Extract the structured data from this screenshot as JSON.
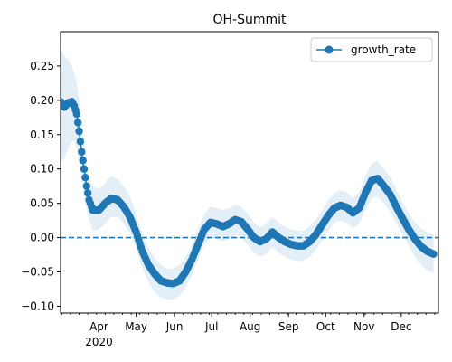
{
  "chart_data": {
    "type": "line",
    "title": "OH-Summit",
    "xlabel": "",
    "ylabel": "",
    "x_axis": {
      "kind": "date",
      "range": [
        "2020-03-01",
        "2020-12-31"
      ],
      "ticks": [
        {
          "date": "2020-04-01",
          "label": "Apr",
          "sublabel": "2020"
        },
        {
          "date": "2020-05-01",
          "label": "May"
        },
        {
          "date": "2020-06-01",
          "label": "Jun"
        },
        {
          "date": "2020-07-01",
          "label": "Jul"
        },
        {
          "date": "2020-08-01",
          "label": "Aug"
        },
        {
          "date": "2020-09-01",
          "label": "Sep"
        },
        {
          "date": "2020-10-01",
          "label": "Oct"
        },
        {
          "date": "2020-11-01",
          "label": "Nov"
        },
        {
          "date": "2020-12-01",
          "label": "Dec"
        }
      ]
    },
    "y_axis": {
      "range": [
        -0.11,
        0.3
      ],
      "ticks": [
        -0.1,
        -0.05,
        0.0,
        0.05,
        0.1,
        0.15,
        0.2,
        0.25
      ],
      "tick_labels": [
        "−0.10",
        "−0.05",
        "0.00",
        "0.05",
        "0.10",
        "0.15",
        "0.20",
        "0.25"
      ]
    },
    "legend": {
      "placement": "top-right",
      "entries": [
        "growth_rate"
      ]
    },
    "grid": false,
    "reference_line": {
      "y": 0.0,
      "style": "dashed",
      "color": "#1f77b4"
    },
    "colors": {
      "series": "#1f77b4",
      "band": "#1f77b4"
    },
    "series": [
      {
        "name": "growth_rate",
        "marker": "circle",
        "points": [
          {
            "x": "2020-03-01",
            "y": 0.198,
            "lo": 0.11,
            "hi": 0.275
          },
          {
            "x": "2020-03-04",
            "y": 0.19,
            "lo": 0.115,
            "hi": 0.265
          },
          {
            "x": "2020-03-07",
            "y": 0.196,
            "lo": 0.13,
            "hi": 0.26
          },
          {
            "x": "2020-03-10",
            "y": 0.198,
            "lo": 0.14,
            "hi": 0.25
          },
          {
            "x": "2020-03-12",
            "y": 0.192,
            "lo": 0.14,
            "hi": 0.24
          },
          {
            "x": "2020-03-14",
            "y": 0.18,
            "lo": 0.13,
            "hi": 0.225
          },
          {
            "x": "2020-03-16",
            "y": 0.155,
            "lo": 0.11,
            "hi": 0.2
          },
          {
            "x": "2020-03-18",
            "y": 0.125,
            "lo": 0.085,
            "hi": 0.17
          },
          {
            "x": "2020-03-20",
            "y": 0.1,
            "lo": 0.06,
            "hi": 0.14
          },
          {
            "x": "2020-03-22",
            "y": 0.075,
            "lo": 0.04,
            "hi": 0.11
          },
          {
            "x": "2020-03-24",
            "y": 0.055,
            "lo": 0.025,
            "hi": 0.09
          },
          {
            "x": "2020-03-27",
            "y": 0.04,
            "lo": 0.01,
            "hi": 0.075
          },
          {
            "x": "2020-04-01",
            "y": 0.04,
            "lo": 0.012,
            "hi": 0.07
          },
          {
            "x": "2020-04-06",
            "y": 0.05,
            "lo": 0.02,
            "hi": 0.08
          },
          {
            "x": "2020-04-11",
            "y": 0.057,
            "lo": 0.03,
            "hi": 0.09
          },
          {
            "x": "2020-04-16",
            "y": 0.055,
            "lo": 0.03,
            "hi": 0.085
          },
          {
            "x": "2020-04-21",
            "y": 0.045,
            "lo": 0.02,
            "hi": 0.075
          },
          {
            "x": "2020-04-26",
            "y": 0.03,
            "lo": 0.005,
            "hi": 0.06
          },
          {
            "x": "2020-05-01",
            "y": 0.008,
            "lo": -0.015,
            "hi": 0.035
          },
          {
            "x": "2020-05-06",
            "y": -0.02,
            "lo": -0.045,
            "hi": 0.005
          },
          {
            "x": "2020-05-11",
            "y": -0.04,
            "lo": -0.065,
            "hi": -0.015
          },
          {
            "x": "2020-05-16",
            "y": -0.053,
            "lo": -0.08,
            "hi": -0.03
          },
          {
            "x": "2020-05-21",
            "y": -0.063,
            "lo": -0.088,
            "hi": -0.04
          },
          {
            "x": "2020-05-26",
            "y": -0.066,
            "lo": -0.09,
            "hi": -0.045
          },
          {
            "x": "2020-05-31",
            "y": -0.067,
            "lo": -0.09,
            "hi": -0.045
          },
          {
            "x": "2020-06-05",
            "y": -0.063,
            "lo": -0.085,
            "hi": -0.04
          },
          {
            "x": "2020-06-10",
            "y": -0.05,
            "lo": -0.072,
            "hi": -0.028
          },
          {
            "x": "2020-06-15",
            "y": -0.032,
            "lo": -0.055,
            "hi": -0.01
          },
          {
            "x": "2020-06-20",
            "y": -0.01,
            "lo": -0.032,
            "hi": 0.012
          },
          {
            "x": "2020-06-25",
            "y": 0.012,
            "lo": -0.01,
            "hi": 0.035
          },
          {
            "x": "2020-06-30",
            "y": 0.022,
            "lo": 0.0,
            "hi": 0.045
          },
          {
            "x": "2020-07-05",
            "y": 0.02,
            "lo": -0.002,
            "hi": 0.043
          },
          {
            "x": "2020-07-10",
            "y": 0.016,
            "lo": -0.005,
            "hi": 0.04
          },
          {
            "x": "2020-07-15",
            "y": 0.02,
            "lo": -0.002,
            "hi": 0.043
          },
          {
            "x": "2020-07-20",
            "y": 0.026,
            "lo": 0.005,
            "hi": 0.048
          },
          {
            "x": "2020-07-25",
            "y": 0.023,
            "lo": 0.0,
            "hi": 0.045
          },
          {
            "x": "2020-07-30",
            "y": 0.012,
            "lo": -0.01,
            "hi": 0.035
          },
          {
            "x": "2020-08-04",
            "y": 0.0,
            "lo": -0.022,
            "hi": 0.022
          },
          {
            "x": "2020-08-09",
            "y": -0.006,
            "lo": -0.028,
            "hi": 0.015
          },
          {
            "x": "2020-08-14",
            "y": -0.002,
            "lo": -0.024,
            "hi": 0.02
          },
          {
            "x": "2020-08-19",
            "y": 0.008,
            "lo": -0.014,
            "hi": 0.03
          },
          {
            "x": "2020-08-24",
            "y": 0.0,
            "lo": -0.022,
            "hi": 0.022
          },
          {
            "x": "2020-08-29",
            "y": -0.006,
            "lo": -0.028,
            "hi": 0.016
          },
          {
            "x": "2020-09-03",
            "y": -0.01,
            "lo": -0.032,
            "hi": 0.012
          },
          {
            "x": "2020-09-08",
            "y": -0.012,
            "lo": -0.034,
            "hi": 0.01
          },
          {
            "x": "2020-09-13",
            "y": -0.012,
            "lo": -0.034,
            "hi": 0.01
          },
          {
            "x": "2020-09-18",
            "y": -0.006,
            "lo": -0.028,
            "hi": 0.016
          },
          {
            "x": "2020-09-23",
            "y": 0.004,
            "lo": -0.018,
            "hi": 0.026
          },
          {
            "x": "2020-09-28",
            "y": 0.018,
            "lo": -0.004,
            "hi": 0.04
          },
          {
            "x": "2020-10-03",
            "y": 0.032,
            "lo": 0.01,
            "hi": 0.054
          },
          {
            "x": "2020-10-08",
            "y": 0.043,
            "lo": 0.022,
            "hi": 0.065
          },
          {
            "x": "2020-10-13",
            "y": 0.047,
            "lo": 0.025,
            "hi": 0.069
          },
          {
            "x": "2020-10-18",
            "y": 0.044,
            "lo": 0.022,
            "hi": 0.066
          },
          {
            "x": "2020-10-23",
            "y": 0.036,
            "lo": 0.014,
            "hi": 0.058
          },
          {
            "x": "2020-10-28",
            "y": 0.043,
            "lo": 0.02,
            "hi": 0.066
          },
          {
            "x": "2020-11-02",
            "y": 0.065,
            "lo": 0.04,
            "hi": 0.09
          },
          {
            "x": "2020-11-07",
            "y": 0.083,
            "lo": 0.058,
            "hi": 0.108
          },
          {
            "x": "2020-11-12",
            "y": 0.086,
            "lo": 0.06,
            "hi": 0.112
          },
          {
            "x": "2020-11-17",
            "y": 0.075,
            "lo": 0.05,
            "hi": 0.1
          },
          {
            "x": "2020-11-22",
            "y": 0.063,
            "lo": 0.038,
            "hi": 0.088
          },
          {
            "x": "2020-11-27",
            "y": 0.045,
            "lo": 0.02,
            "hi": 0.07
          },
          {
            "x": "2020-12-02",
            "y": 0.028,
            "lo": 0.004,
            "hi": 0.052
          },
          {
            "x": "2020-12-07",
            "y": 0.012,
            "lo": -0.012,
            "hi": 0.036
          },
          {
            "x": "2020-12-12",
            "y": -0.002,
            "lo": -0.028,
            "hi": 0.022
          },
          {
            "x": "2020-12-17",
            "y": -0.013,
            "lo": -0.04,
            "hi": 0.013
          },
          {
            "x": "2020-12-22",
            "y": -0.02,
            "lo": -0.048,
            "hi": 0.008
          },
          {
            "x": "2020-12-27",
            "y": -0.024,
            "lo": -0.052,
            "hi": 0.004
          }
        ]
      }
    ]
  }
}
